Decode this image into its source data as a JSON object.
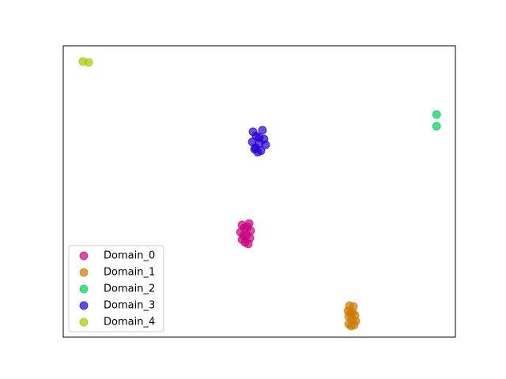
{
  "chart_data": {
    "type": "scatter",
    "xlim": [
      0,
      100
    ],
    "ylim": [
      0,
      100
    ],
    "legend": "lower left",
    "alpha": 0.7,
    "series": [
      {
        "name": "Domain_0",
        "color": "#c8007e",
        "x": [
          45.6,
          47.4,
          46.2,
          47.8,
          45.2,
          46.8,
          47.6,
          45.6,
          46.4,
          47.2,
          46.0,
          47.0
        ],
        "y": [
          38.5,
          39.0,
          37.5,
          36.5,
          36.0,
          35.0,
          34.0,
          33.5,
          32.5,
          32.0,
          34.8,
          37.8
        ]
      },
      {
        "name": "Domain_1",
        "color": "#cc7a00",
        "x": [
          73.0,
          74.0,
          72.6,
          73.8,
          74.4,
          72.8,
          73.6,
          74.6,
          72.8,
          73.4,
          74.2,
          73.2
        ],
        "y": [
          10.8,
          10.5,
          9.0,
          8.5,
          7.5,
          7.0,
          6.0,
          5.5,
          4.5,
          3.8,
          4.2,
          8.2
        ]
      },
      {
        "name": "Domain_2",
        "color": "#00cc55",
        "x": [
          95.2,
          95.2
        ],
        "y": [
          76.4,
          72.4
        ]
      },
      {
        "name": "Domain_3",
        "color": "#2600d0",
        "x": [
          48.4,
          50.8,
          49.2,
          51.2,
          48.2,
          50.0,
          51.6,
          49.0,
          50.4,
          49.6,
          50.0,
          48.8
        ],
        "y": [
          70.5,
          71.0,
          69.0,
          68.0,
          67.0,
          66.5,
          66.0,
          65.0,
          64.0,
          63.5,
          68.5,
          64.5
        ]
      },
      {
        "name": "Domain_4",
        "color": "#a8c800",
        "x": [
          5.0,
          6.5
        ],
        "y": [
          94.6,
          94.3
        ]
      }
    ]
  }
}
